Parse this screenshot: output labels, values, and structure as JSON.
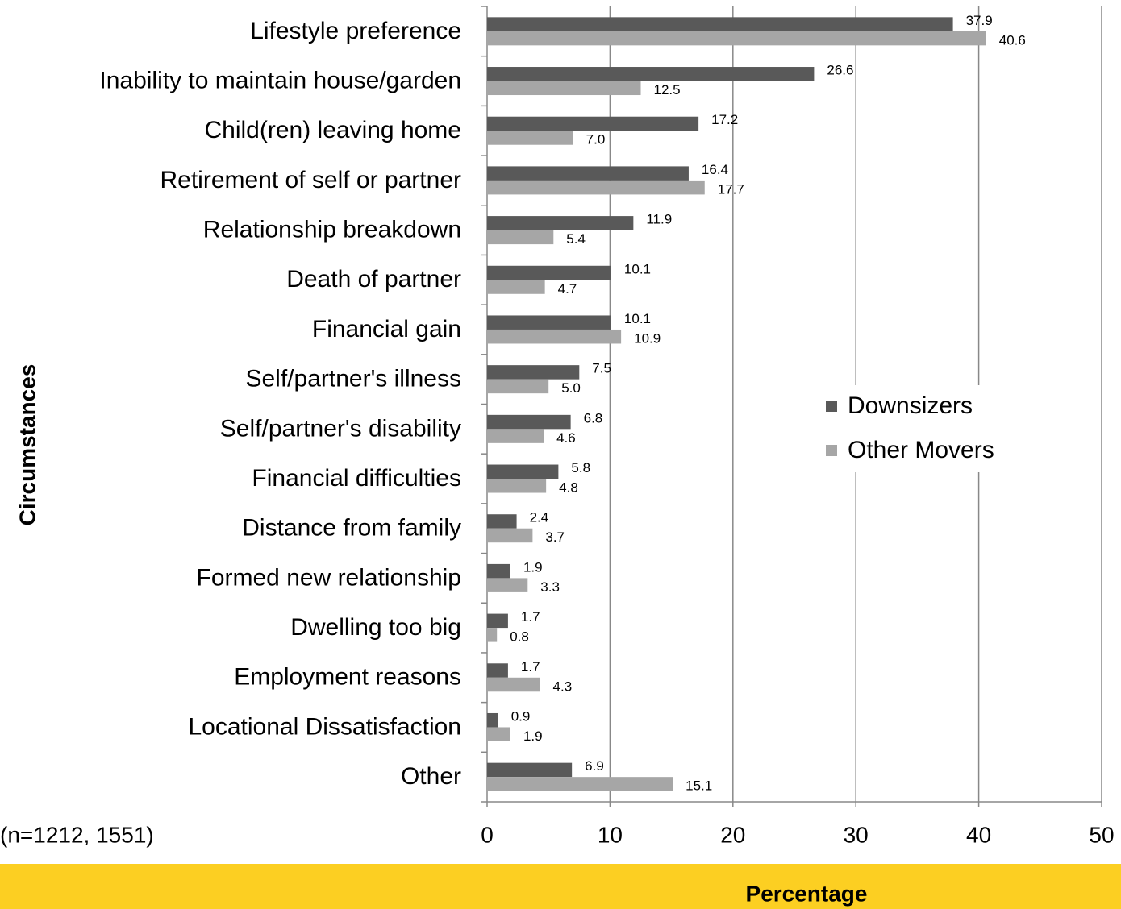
{
  "chart_data": {
    "type": "hbar",
    "categories": [
      "Lifestyle preference",
      "Inability to maintain house/garden",
      "Child(ren) leaving home",
      "Retirement of self or partner",
      "Relationship breakdown",
      "Death of partner",
      "Financial gain",
      "Self/partner's illness",
      "Self/partner's disability",
      "Financial difficulties",
      "Distance from family",
      "Formed new relationship",
      "Dwelling too big",
      "Employment reasons",
      "Locational Dissatisfaction",
      "Other"
    ],
    "series": [
      {
        "name": "Downsizers",
        "color": "#595959",
        "values": [
          37.9,
          26.6,
          17.2,
          16.4,
          11.9,
          10.1,
          10.1,
          7.5,
          6.8,
          5.8,
          2.4,
          1.9,
          1.7,
          1.7,
          0.9,
          6.9
        ],
        "value_labels": [
          "37.9",
          "26.6",
          "17.2",
          "16.4",
          "11.9",
          "10.1",
          "10.1",
          "7.5",
          "6.8",
          "5.8",
          "2.4",
          "1.9",
          "1.7",
          "1.7",
          "0.9",
          "6.9"
        ]
      },
      {
        "name": "Other Movers",
        "color": "#a6a6a6",
        "values": [
          40.6,
          12.5,
          7.0,
          17.7,
          5.4,
          4.7,
          10.9,
          5.0,
          4.6,
          4.8,
          3.7,
          3.3,
          0.8,
          4.3,
          1.9,
          15.1
        ],
        "value_labels": [
          "40.6",
          "12.5",
          "7.0",
          "17.7",
          "5.4",
          "4.7",
          "10.9",
          "5.0",
          "4.6",
          "4.8",
          "3.7",
          "3.3",
          "0.8",
          "4.3",
          "1.9",
          "15.1"
        ]
      }
    ],
    "xlim": [
      0,
      50
    ],
    "xticks": [
      0,
      10,
      20,
      30,
      40,
      50
    ],
    "grid": true,
    "x_label": "Percentage",
    "y_label": "Circumstances",
    "annotation": "(n=1212, 1551)",
    "legend": "right"
  }
}
